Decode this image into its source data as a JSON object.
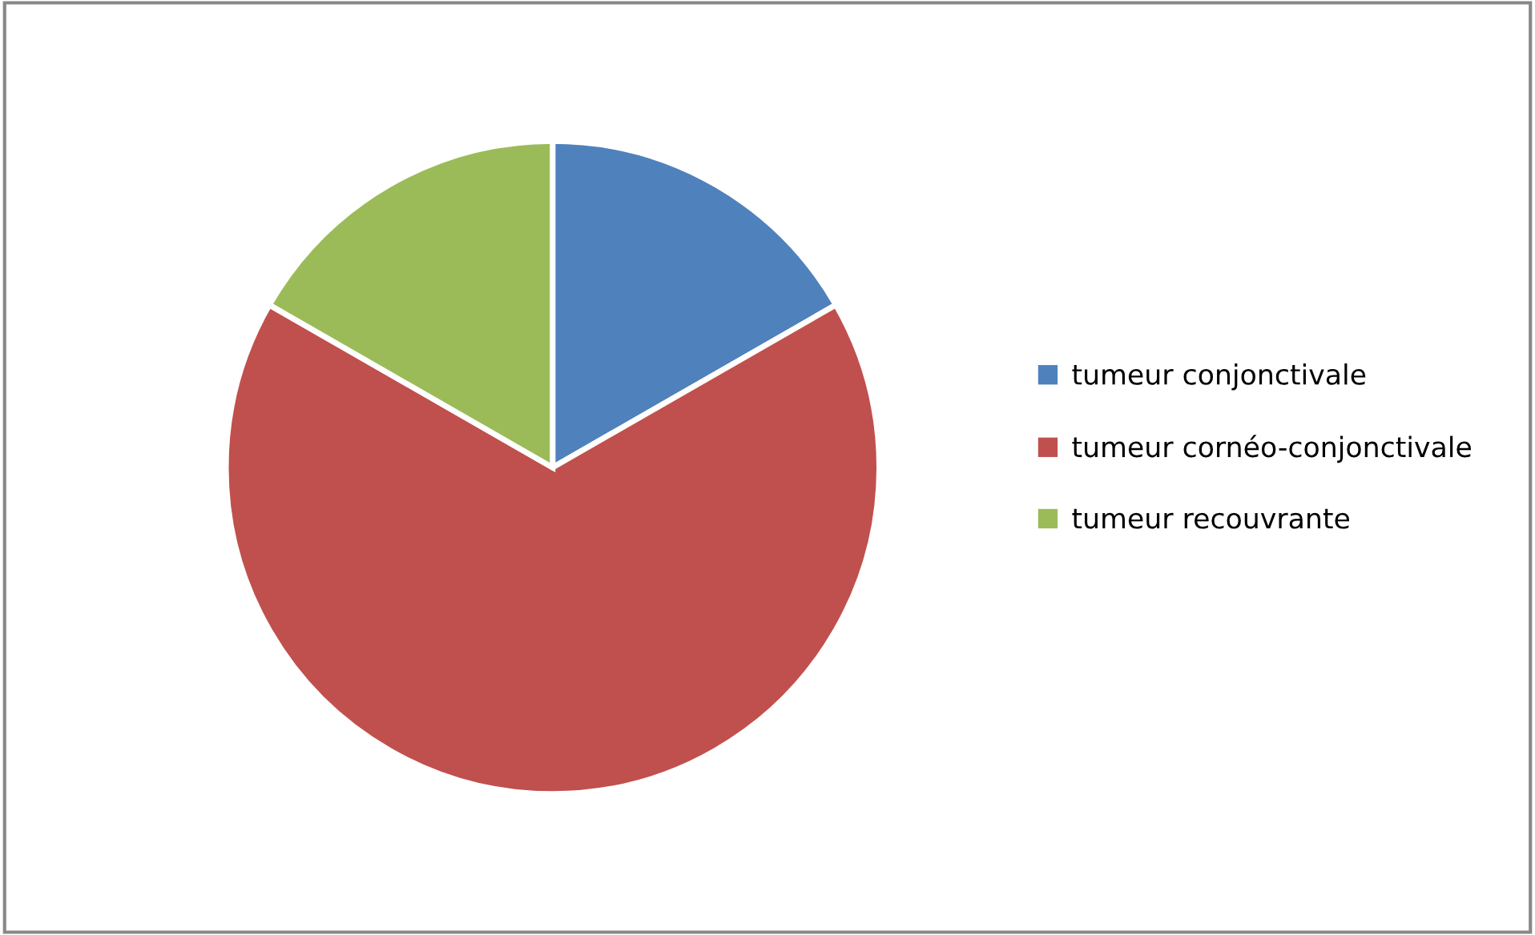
{
  "chart_data": {
    "type": "pie",
    "categories": [
      "tumeur conjonctivale",
      "tumeur cornéo-conjonctivale",
      "tumeur recouvrante"
    ],
    "values": [
      16.7,
      66.6,
      16.7
    ],
    "colors": [
      "#4f81bd",
      "#c0504d",
      "#9bbb59"
    ],
    "legend": "right"
  }
}
